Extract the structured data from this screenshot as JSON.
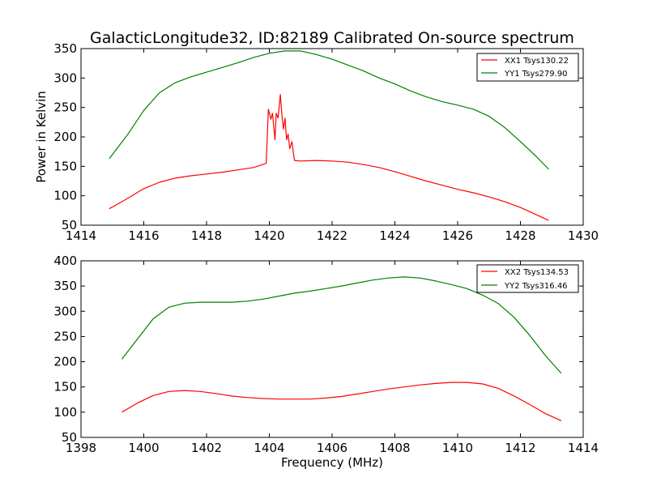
{
  "chart_data": [
    {
      "type": "line",
      "title": "GalacticLongitude32, ID:82189 Calibrated On-source spectrum",
      "xlabel": "",
      "ylabel": "Power in Kelvin",
      "xlim": [
        1414,
        1430
      ],
      "ylim": [
        50,
        350
      ],
      "xticks": [
        1414,
        1416,
        1418,
        1420,
        1422,
        1424,
        1426,
        1428,
        1430
      ],
      "yticks": [
        50,
        100,
        150,
        200,
        250,
        300,
        350
      ],
      "grid": false,
      "legend_position": "top-right",
      "series": [
        {
          "name": "XX1 Tsys130.22",
          "color": "#ff0000",
          "x": [
            1414.9,
            1415.5,
            1416.0,
            1416.5,
            1417.0,
            1417.5,
            1418.0,
            1418.5,
            1419.0,
            1419.5,
            1419.9,
            1419.97,
            1420.05,
            1420.1,
            1420.18,
            1420.22,
            1420.28,
            1420.35,
            1420.4,
            1420.45,
            1420.5,
            1420.55,
            1420.6,
            1420.65,
            1420.72,
            1420.8,
            1421.0,
            1421.5,
            1422.0,
            1422.5,
            1423.0,
            1423.5,
            1424.0,
            1424.5,
            1425.0,
            1425.5,
            1426.0,
            1426.5,
            1427.0,
            1427.5,
            1428.0,
            1428.5,
            1428.9
          ],
          "y": [
            78,
            96,
            112,
            123,
            130,
            134,
            137,
            140,
            144,
            148,
            155,
            247,
            230,
            240,
            195,
            240,
            232,
            272,
            238,
            213,
            232,
            195,
            205,
            180,
            192,
            160,
            159,
            160,
            159,
            157,
            153,
            148,
            141,
            133,
            125,
            118,
            111,
            105,
            98,
            90,
            80,
            68,
            58
          ]
        },
        {
          "name": "YY1 Tsys279.90",
          "color": "#008000",
          "x": [
            1414.9,
            1415.5,
            1416.0,
            1416.5,
            1417.0,
            1417.5,
            1418.0,
            1418.5,
            1419.0,
            1419.5,
            1420.0,
            1420.5,
            1421.0,
            1421.5,
            1422.0,
            1422.5,
            1423.0,
            1423.5,
            1424.0,
            1424.5,
            1425.0,
            1425.5,
            1426.0,
            1426.5,
            1427.0,
            1427.5,
            1428.0,
            1428.5,
            1428.9
          ],
          "y": [
            163,
            205,
            245,
            275,
            292,
            302,
            310,
            318,
            326,
            335,
            342,
            346,
            346,
            340,
            332,
            322,
            312,
            300,
            290,
            278,
            268,
            260,
            254,
            247,
            235,
            216,
            192,
            167,
            145
          ]
        }
      ]
    },
    {
      "type": "line",
      "title": "",
      "xlabel": "Frequency (MHz)",
      "ylabel": "",
      "xlim": [
        1398,
        1414
      ],
      "ylim": [
        50,
        400
      ],
      "xticks": [
        1398,
        1400,
        1402,
        1404,
        1406,
        1408,
        1410,
        1412,
        1414
      ],
      "yticks": [
        50,
        100,
        150,
        200,
        250,
        300,
        350,
        400
      ],
      "grid": false,
      "legend_position": "top-right",
      "series": [
        {
          "name": "XX2 Tsys134.53",
          "color": "#ff0000",
          "x": [
            1399.3,
            1399.8,
            1400.3,
            1400.8,
            1401.3,
            1401.8,
            1402.3,
            1402.8,
            1403.3,
            1403.8,
            1404.3,
            1404.8,
            1405.3,
            1405.8,
            1406.3,
            1406.8,
            1407.3,
            1407.8,
            1408.3,
            1408.8,
            1409.3,
            1409.8,
            1410.3,
            1410.8,
            1411.3,
            1411.8,
            1412.3,
            1412.8,
            1413.3
          ],
          "y": [
            100,
            118,
            133,
            141,
            143,
            141,
            137,
            132,
            129,
            127,
            126,
            126,
            126,
            128,
            131,
            136,
            141,
            146,
            150,
            154,
            157,
            159,
            159,
            156,
            147,
            132,
            115,
            97,
            83
          ]
        },
        {
          "name": "YY2 Tsys316.46",
          "color": "#008000",
          "x": [
            1399.3,
            1399.8,
            1400.3,
            1400.8,
            1401.3,
            1401.8,
            1402.3,
            1402.8,
            1403.3,
            1403.8,
            1404.3,
            1404.8,
            1405.3,
            1405.8,
            1406.3,
            1406.8,
            1407.3,
            1407.8,
            1408.3,
            1408.8,
            1409.3,
            1409.8,
            1410.3,
            1410.8,
            1411.3,
            1411.8,
            1412.3,
            1412.8,
            1413.3
          ],
          "y": [
            205,
            245,
            285,
            308,
            316,
            318,
            318,
            318,
            320,
            324,
            330,
            336,
            340,
            345,
            350,
            356,
            362,
            366,
            368,
            366,
            360,
            353,
            345,
            332,
            315,
            288,
            252,
            212,
            177
          ]
        }
      ]
    }
  ]
}
